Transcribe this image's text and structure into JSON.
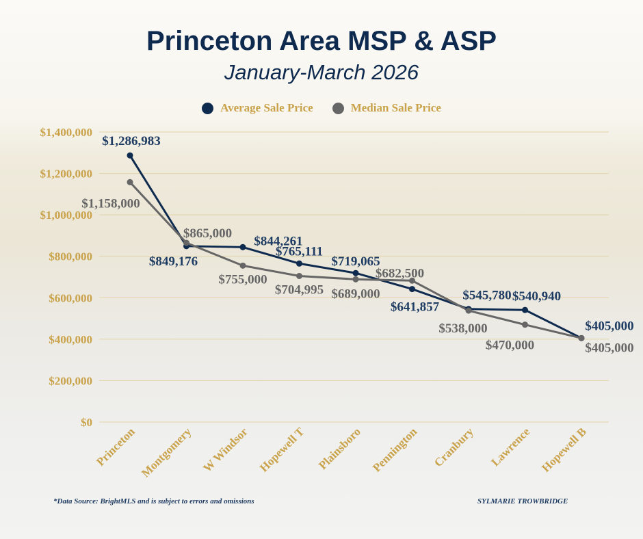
{
  "chart_data": {
    "type": "line",
    "title": "Princeton Area MSP & ASP",
    "subtitle": "January-March 2026",
    "categories": [
      "Princeton",
      "Montgomery",
      "W Windsor",
      "Hopewell T",
      "Plainsboro",
      "Pennington",
      "Cranbury",
      "Lawrence",
      "Hopewell B"
    ],
    "series": [
      {
        "name": "Average Sale Price",
        "color": "#0f2a4f",
        "values": [
          1286983,
          849176,
          844261,
          765111,
          719065,
          641857,
          545780,
          540940,
          405000
        ],
        "labels": [
          "$1,286,983",
          "$849,176",
          "$844,261",
          "$765,111",
          "$719,065",
          "$641,857",
          "$545,780",
          "$540,940",
          "$405,000"
        ]
      },
      {
        "name": "Median Sale Price",
        "color": "#666666",
        "values": [
          1158000,
          865000,
          755000,
          704995,
          689000,
          682500,
          538000,
          470000,
          405000
        ],
        "labels": [
          "$1,158,000",
          "$865,000",
          "$755,000",
          "$704,995",
          "$689,000",
          "$682,500",
          "$538,000",
          "$470,000",
          "$405,000"
        ]
      }
    ],
    "ylim": [
      0,
      1400000
    ],
    "yticks": [
      0,
      200000,
      400000,
      600000,
      800000,
      1000000,
      1200000,
      1400000
    ],
    "ytick_labels": [
      "$0",
      "$200,000",
      "$400,000",
      "$600,000",
      "$800,000",
      "$1,000,000",
      "$1,200,000",
      "$1,400,000"
    ],
    "grid": true,
    "legend": "top-center"
  },
  "footer": {
    "source": "*Data Source: BrightMLS and is subject to errors and omissions",
    "author": "SYLMARIE TROWBRIDGE"
  }
}
